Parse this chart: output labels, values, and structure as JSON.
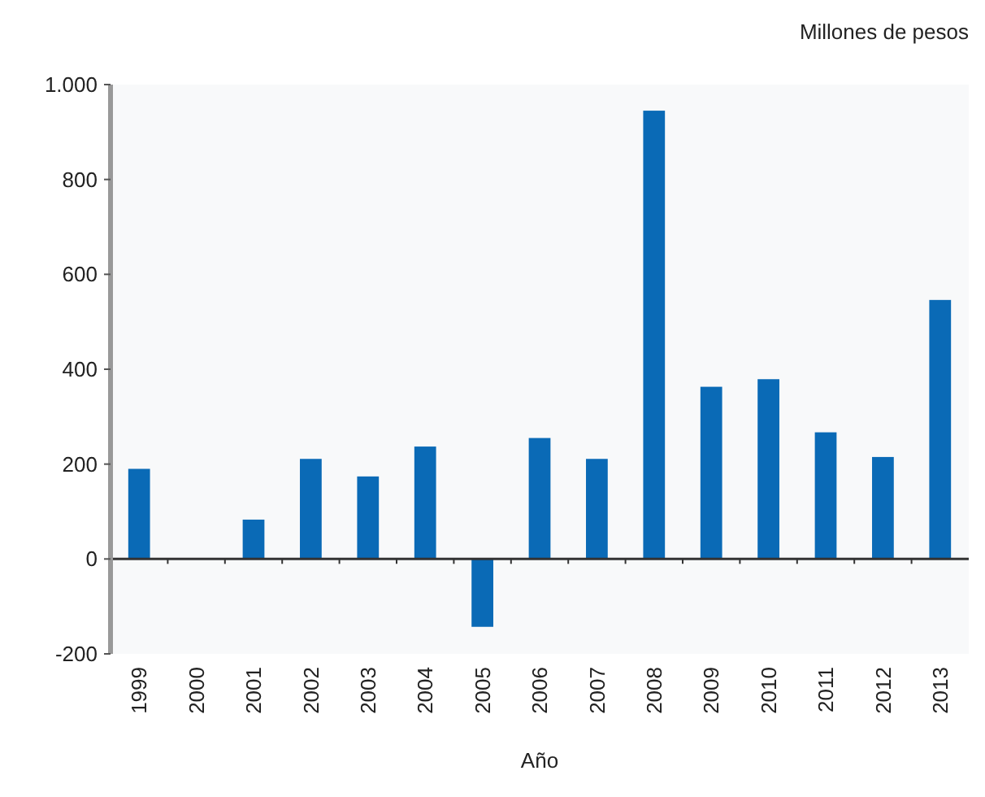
{
  "chart_data": {
    "type": "bar",
    "ylabel": "Millones de pesos",
    "xlabel": "Año",
    "categories": [
      "1999",
      "2000",
      "2001",
      "2002",
      "2003",
      "2004",
      "2005",
      "2006",
      "2007",
      "2008",
      "2009",
      "2010",
      "2011",
      "2012",
      "2013"
    ],
    "values": [
      190,
      0,
      83,
      211,
      174,
      237,
      -143,
      255,
      211,
      945,
      363,
      379,
      267,
      215,
      546
    ],
    "color": "#0a6ab6",
    "ylim": [
      -200,
      1000
    ],
    "yticks": [
      -200,
      0,
      200,
      400,
      600,
      800,
      {
        "value": 1000,
        "label": "1.000"
      }
    ]
  }
}
